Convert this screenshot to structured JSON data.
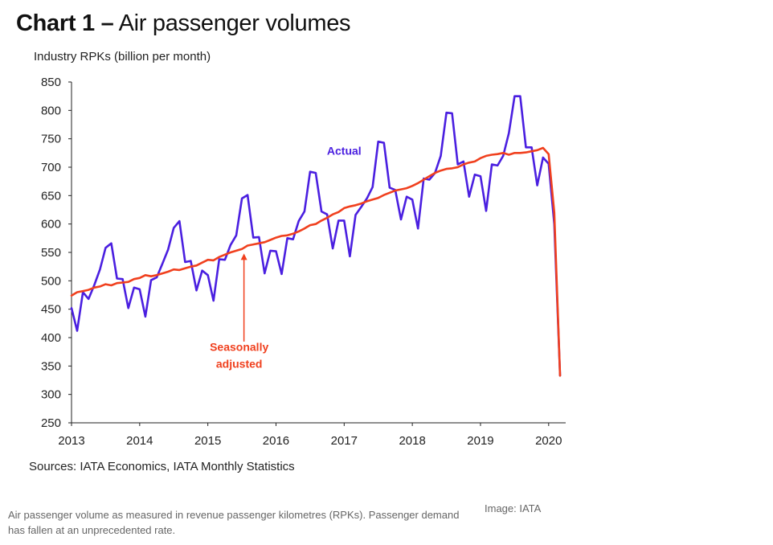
{
  "title": {
    "bold": "Chart 1 –",
    "rest": "Air passenger volumes"
  },
  "caption": "Air passenger volume as measured in revenue passenger kilometres (RPKs). Passenger demand has fallen at an unprecedented rate.",
  "credit": "Image: IATA",
  "colors": {
    "actual": "#4a1fe0",
    "seasonally_adjusted": "#f0401e",
    "axis": "#222222"
  },
  "chart_data": {
    "type": "line",
    "title": "Chart 1 – Air passenger volumes",
    "ylabel": "Industry RPKs (billion per month)",
    "xlabel": "",
    "source": "Sources: IATA Economics, IATA Monthly Statistics",
    "ylim": [
      250,
      850
    ],
    "yticks": [
      250,
      300,
      350,
      400,
      450,
      500,
      550,
      600,
      650,
      700,
      750,
      800,
      850
    ],
    "xlim": [
      2013,
      2020.25
    ],
    "xticks": [
      "2013",
      "2014",
      "2015",
      "2016",
      "2017",
      "2018",
      "2019",
      "2020"
    ],
    "grid": false,
    "legend": "none",
    "annotations": [
      {
        "text": "Actual",
        "series": "Actual",
        "x": 2017.0,
        "y": 722
      },
      {
        "text": "Seasonally",
        "series": "Seasonally adjusted",
        "x": 2015.46,
        "y": 377
      },
      {
        "text": "adjusted",
        "series": "Seasonally adjusted",
        "x": 2015.46,
        "y": 347
      }
    ],
    "series": [
      {
        "name": "Actual",
        "color": "#4a1fe0",
        "x": [
          2013.0,
          2013.083,
          2013.167,
          2013.25,
          2013.333,
          2013.417,
          2013.5,
          2013.583,
          2013.667,
          2013.75,
          2013.833,
          2013.917,
          2014.0,
          2014.083,
          2014.167,
          2014.25,
          2014.333,
          2014.417,
          2014.5,
          2014.583,
          2014.667,
          2014.75,
          2014.833,
          2014.917,
          2015.0,
          2015.083,
          2015.167,
          2015.25,
          2015.333,
          2015.417,
          2015.5,
          2015.583,
          2015.667,
          2015.75,
          2015.833,
          2015.917,
          2016.0,
          2016.083,
          2016.167,
          2016.25,
          2016.333,
          2016.417,
          2016.5,
          2016.583,
          2016.667,
          2016.75,
          2016.833,
          2016.917,
          2017.0,
          2017.083,
          2017.167,
          2017.25,
          2017.333,
          2017.417,
          2017.5,
          2017.583,
          2017.667,
          2017.75,
          2017.833,
          2017.917,
          2018.0,
          2018.083,
          2018.167,
          2018.25,
          2018.333,
          2018.417,
          2018.5,
          2018.583,
          2018.667,
          2018.75,
          2018.833,
          2018.917,
          2019.0,
          2019.083,
          2019.167,
          2019.25,
          2019.333,
          2019.417,
          2019.5,
          2019.583,
          2019.667,
          2019.75,
          2019.833,
          2019.917,
          2020.0,
          2020.083,
          2020.167
        ],
        "values": [
          452,
          412,
          480,
          468,
          492,
          520,
          558,
          566,
          504,
          503,
          452,
          488,
          485,
          437,
          501,
          506,
          530,
          555,
          593,
          605,
          533,
          535,
          483,
          518,
          510,
          465,
          538,
          537,
          563,
          580,
          645,
          651,
          576,
          577,
          513,
          553,
          552,
          512,
          575,
          573,
          605,
          622,
          692,
          690,
          622,
          617,
          557,
          606,
          606,
          543,
          616,
          630,
          645,
          665,
          745,
          743,
          664,
          660,
          608,
          648,
          643,
          592,
          680,
          678,
          690,
          720,
          796,
          795,
          705,
          710,
          648,
          687,
          684,
          623,
          705,
          703,
          720,
          760,
          825,
          825,
          735,
          735,
          668,
          717,
          706,
          600,
          333
        ]
      },
      {
        "name": "Seasonally adjusted",
        "color": "#f0401e",
        "x": [
          2013.0,
          2013.083,
          2013.167,
          2013.25,
          2013.333,
          2013.417,
          2013.5,
          2013.583,
          2013.667,
          2013.75,
          2013.833,
          2013.917,
          2014.0,
          2014.083,
          2014.167,
          2014.25,
          2014.333,
          2014.417,
          2014.5,
          2014.583,
          2014.667,
          2014.75,
          2014.833,
          2014.917,
          2015.0,
          2015.083,
          2015.167,
          2015.25,
          2015.333,
          2015.417,
          2015.5,
          2015.583,
          2015.667,
          2015.75,
          2015.833,
          2015.917,
          2016.0,
          2016.083,
          2016.167,
          2016.25,
          2016.333,
          2016.417,
          2016.5,
          2016.583,
          2016.667,
          2016.75,
          2016.833,
          2016.917,
          2017.0,
          2017.083,
          2017.167,
          2017.25,
          2017.333,
          2017.417,
          2017.5,
          2017.583,
          2017.667,
          2017.75,
          2017.833,
          2017.917,
          2018.0,
          2018.083,
          2018.167,
          2018.25,
          2018.333,
          2018.417,
          2018.5,
          2018.583,
          2018.667,
          2018.75,
          2018.833,
          2018.917,
          2019.0,
          2019.083,
          2019.167,
          2019.25,
          2019.333,
          2019.417,
          2019.5,
          2019.583,
          2019.667,
          2019.75,
          2019.833,
          2019.917,
          2020.0,
          2020.083,
          2020.167
        ],
        "values": [
          474,
          480,
          482,
          484,
          488,
          490,
          494,
          492,
          496,
          497,
          498,
          503,
          505,
          510,
          508,
          510,
          513,
          516,
          520,
          519,
          522,
          525,
          527,
          532,
          537,
          536,
          542,
          546,
          550,
          553,
          556,
          562,
          564,
          566,
          568,
          572,
          576,
          579,
          580,
          583,
          587,
          592,
          598,
          600,
          606,
          611,
          617,
          621,
          628,
          631,
          633,
          636,
          640,
          643,
          646,
          651,
          655,
          659,
          661,
          663,
          667,
          672,
          678,
          684,
          690,
          694,
          697,
          698,
          700,
          705,
          708,
          710,
          716,
          720,
          722,
          723,
          725,
          722,
          725,
          725,
          726,
          728,
          730,
          734,
          723,
          620,
          333
        ]
      }
    ]
  }
}
